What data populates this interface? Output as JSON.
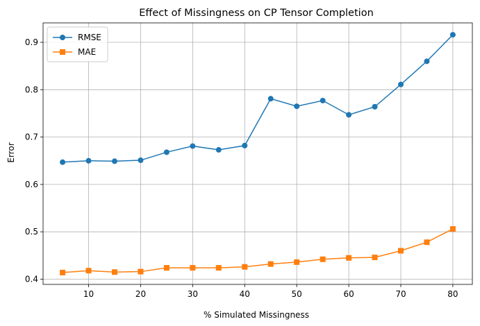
{
  "chart_data": {
    "type": "line",
    "title": "Effect of Missingness on CP Tensor Completion",
    "xlabel": "% Simulated Missingness",
    "ylabel": "Error",
    "x": [
      5,
      10,
      15,
      20,
      25,
      30,
      35,
      40,
      45,
      50,
      55,
      60,
      65,
      70,
      75,
      80
    ],
    "xlim": [
      1.25,
      83.75
    ],
    "ylim": [
      0.389,
      0.941
    ],
    "xticks": [
      10,
      20,
      30,
      40,
      50,
      60,
      70,
      80
    ],
    "yticks": [
      0.4,
      0.5,
      0.6,
      0.7,
      0.8,
      0.9
    ],
    "xtick_labels": [
      "10",
      "20",
      "30",
      "40",
      "50",
      "60",
      "70",
      "80"
    ],
    "ytick_labels": [
      "0.4",
      "0.5",
      "0.6",
      "0.7",
      "0.8",
      "0.9"
    ],
    "grid": true,
    "legend_position": "upper-left",
    "series": [
      {
        "name": "RMSE",
        "color": "#1f77b4",
        "marker": "circle",
        "values": [
          0.647,
          0.65,
          0.649,
          0.651,
          0.668,
          0.681,
          0.673,
          0.682,
          0.781,
          0.765,
          0.777,
          0.747,
          0.764,
          0.811,
          0.86,
          0.916
        ]
      },
      {
        "name": "MAE",
        "color": "#ff7f0e",
        "marker": "square",
        "values": [
          0.414,
          0.418,
          0.415,
          0.416,
          0.424,
          0.424,
          0.424,
          0.426,
          0.432,
          0.436,
          0.442,
          0.445,
          0.446,
          0.46,
          0.478,
          0.506
        ]
      }
    ]
  }
}
